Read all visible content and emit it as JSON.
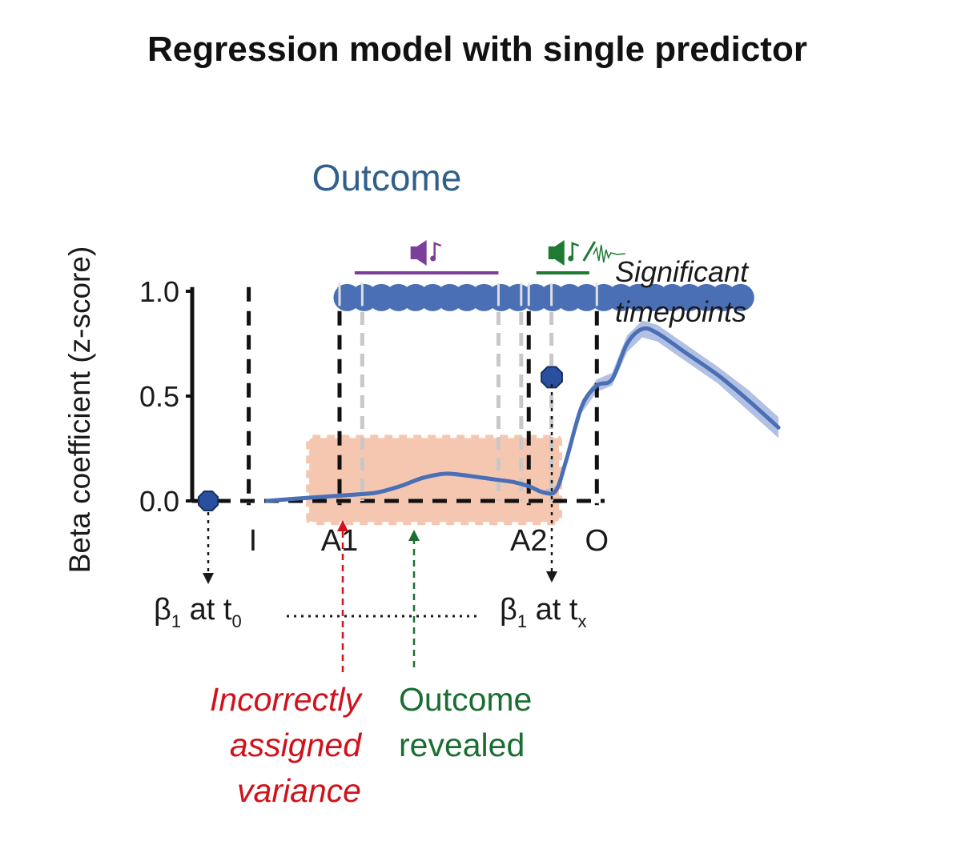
{
  "title": "Regression model with single predictor",
  "series_label": "Outcome",
  "ylabel": "Beta coefficient (z-score)",
  "significant_label": [
    "Significant",
    "timepoints"
  ],
  "beta_labels": {
    "t0": {
      "symbol": "β",
      "sub": "1",
      "text": " at t",
      "tsub": "0"
    },
    "tx": {
      "symbol": "β",
      "sub": "1",
      "text": " at t",
      "tsub": "x"
    }
  },
  "annotations": {
    "incorrect": {
      "lines": [
        "Incorrectly",
        "assigned",
        "variance"
      ],
      "color": "#d0121b"
    },
    "revealed": {
      "lines": [
        "Outcome",
        "revealed"
      ],
      "color": "#1a6e31"
    }
  },
  "colors": {
    "series": "#4a6fb5",
    "series_band": "#9fb0dc",
    "dots": "#4a6fb5",
    "highlight": "#f6c7b0",
    "title_series": "#2f5f8a",
    "purple_icon": "#7b3e9a",
    "green_icon": "#1f7a34",
    "gray_dash": "#c8c8c8"
  },
  "icons": {
    "purple": "speaker-music-icon",
    "green": "speaker-music-noise-icon"
  },
  "chart_data": {
    "type": "line",
    "title": "Outcome",
    "xlabel": "",
    "ylabel": "Beta coefficient (z-score)",
    "ylim": [
      0,
      1
    ],
    "yticks": [
      0.0,
      0.5,
      1.0
    ],
    "ytick_labels": [
      "0.0",
      "0.5",
      "1.0"
    ],
    "xlim": [
      -0.1,
      3.8
    ],
    "events": [
      {
        "label": "I",
        "x": 0.3
      },
      {
        "label": "A1",
        "x": 0.9
      },
      {
        "label": "A2",
        "x": 2.15
      },
      {
        "label": "O",
        "x": 2.6
      }
    ],
    "gray_markers": [
      1.05,
      1.95,
      2.1,
      2.3
    ],
    "series": [
      {
        "name": "Outcome",
        "x": [
          0.42,
          0.6,
          0.8,
          1.0,
          1.15,
          1.3,
          1.45,
          1.6,
          1.75,
          1.85,
          1.95,
          2.05,
          2.15,
          2.25,
          2.33,
          2.4,
          2.5,
          2.6,
          2.7,
          2.8,
          2.9,
          3.0,
          3.2,
          3.4,
          3.6,
          3.8
        ],
        "y": [
          0.0,
          0.01,
          0.02,
          0.03,
          0.04,
          0.07,
          0.11,
          0.13,
          0.12,
          0.11,
          0.1,
          0.09,
          0.07,
          0.04,
          0.05,
          0.2,
          0.45,
          0.55,
          0.58,
          0.75,
          0.82,
          0.8,
          0.7,
          0.6,
          0.48,
          0.35
        ],
        "ci_half_width": [
          0.01,
          0.01,
          0.01,
          0.01,
          0.01,
          0.01,
          0.01,
          0.01,
          0.01,
          0.01,
          0.01,
          0.01,
          0.01,
          0.01,
          0.02,
          0.02,
          0.03,
          0.03,
          0.03,
          0.04,
          0.04,
          0.04,
          0.04,
          0.04,
          0.05,
          0.05
        ]
      }
    ],
    "significant_timepoints": {
      "x_start": 0.95,
      "x_end": 3.55,
      "count": 24,
      "y": 0.97
    },
    "sound_bars": [
      {
        "icon": "purple",
        "x_start": 1.0,
        "x_end": 1.95
      },
      {
        "icon": "green",
        "x_start": 2.2,
        "x_end": 2.55
      }
    ],
    "highlight_region": {
      "x_start": 0.7,
      "x_end": 2.35,
      "y_start": -0.1,
      "y_end": 0.3
    },
    "points": [
      {
        "name": "t0",
        "x": 0.05,
        "y": 0.0
      },
      {
        "name": "tx",
        "x": 3.1,
        "y": 0.59
      }
    ]
  }
}
